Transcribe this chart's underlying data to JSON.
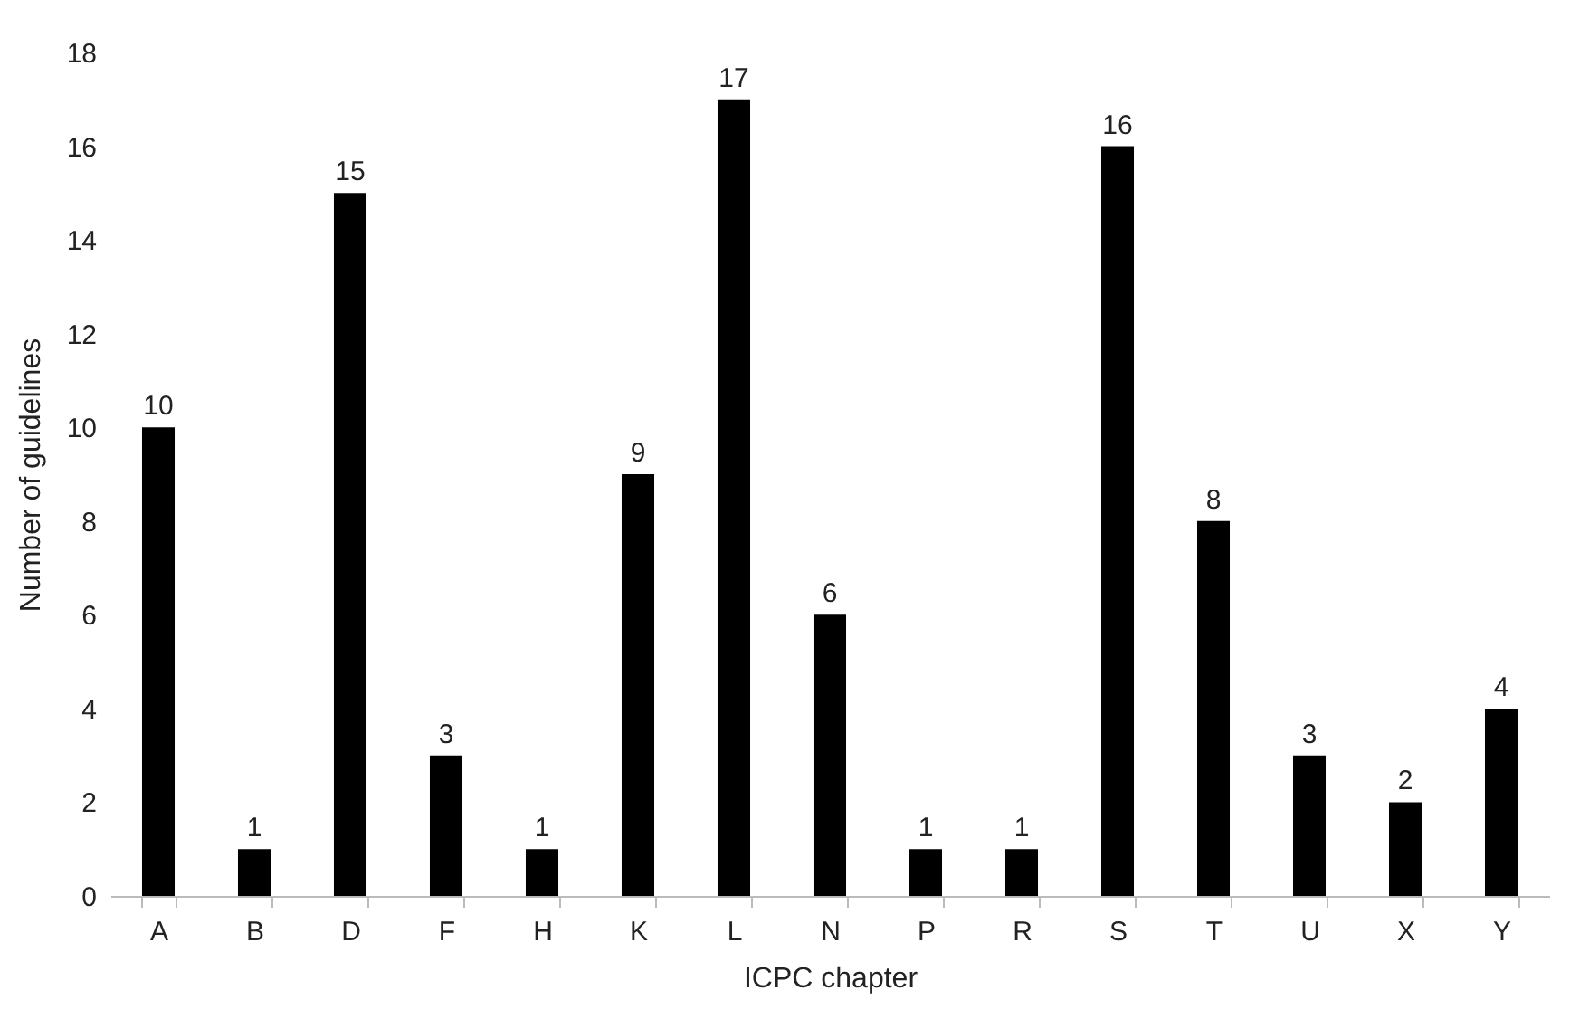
{
  "chart_data": {
    "type": "bar",
    "xlabel": "ICPC chapter",
    "ylabel": "Number of guidelines",
    "categories": [
      "A",
      "B",
      "D",
      "F",
      "H",
      "K",
      "L",
      "N",
      "P",
      "R",
      "S",
      "T",
      "U",
      "X",
      "Y"
    ],
    "values": [
      10,
      1,
      15,
      3,
      1,
      9,
      17,
      6,
      1,
      1,
      16,
      8,
      3,
      2,
      4
    ],
    "color": "#000000",
    "data_labels": true,
    "grid": false,
    "ylim": [
      0,
      18
    ],
    "yticks": [
      0,
      2,
      4,
      6,
      8,
      10,
      12,
      14,
      16,
      18
    ]
  }
}
